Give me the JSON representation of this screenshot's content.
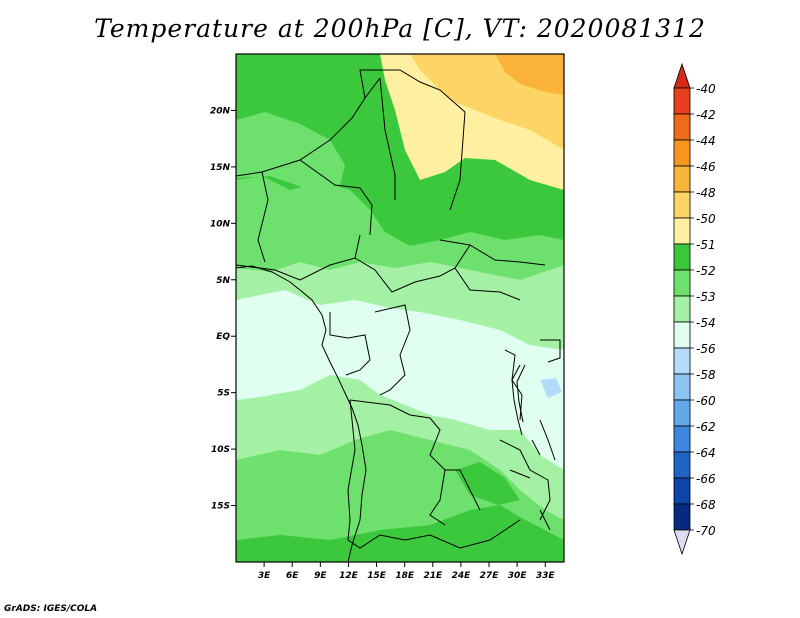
{
  "title": "Temperature at 200hPa [C], VT: 2020081312",
  "credit": "GrADS: IGES/COLA",
  "map": {
    "extent": {
      "lon_min": 0,
      "lon_max": 35,
      "lat_min": -20,
      "lat_max": 25
    },
    "lat_ticks": [
      {
        "lat": 20,
        "label": "20N"
      },
      {
        "lat": 15,
        "label": "15N"
      },
      {
        "lat": 10,
        "label": "10N"
      },
      {
        "lat": 5,
        "label": "5N"
      },
      {
        "lat": 0,
        "label": "EQ"
      },
      {
        "lat": -5,
        "label": "5S"
      },
      {
        "lat": -10,
        "label": "10S"
      },
      {
        "lat": -15,
        "label": "15S"
      }
    ],
    "lon_ticks": [
      {
        "lon": 3,
        "label": "3E"
      },
      {
        "lon": 6,
        "label": "6E"
      },
      {
        "lon": 9,
        "label": "9E"
      },
      {
        "lon": 12,
        "label": "12E"
      },
      {
        "lon": 15,
        "label": "15E"
      },
      {
        "lon": 18,
        "label": "18E"
      },
      {
        "lon": 21,
        "label": "21E"
      },
      {
        "lon": 24,
        "label": "24E"
      },
      {
        "lon": 27,
        "label": "27E"
      },
      {
        "lon": 30,
        "label": "30E"
      },
      {
        "lon": 33,
        "label": "33E"
      }
    ]
  },
  "colorbar": {
    "top_arrow_color": "#d42a1c",
    "bottom_arrow_color": "#dcdcf4",
    "levels": [
      {
        "label": "-40",
        "color": "#e8401e"
      },
      {
        "label": "-42",
        "color": "#f06a1c"
      },
      {
        "label": "-44",
        "color": "#f7961e"
      },
      {
        "label": "-46",
        "color": "#fbb43a"
      },
      {
        "label": "-48",
        "color": "#fdd466"
      },
      {
        "label": "-50",
        "color": "#fef0a0"
      },
      {
        "label": "-51",
        "color": "#3cc83c"
      },
      {
        "label": "-52",
        "color": "#6ee06e"
      },
      {
        "label": "-53",
        "color": "#a4f0a4"
      },
      {
        "label": "-54",
        "color": "#e0fff0"
      },
      {
        "label": "-56",
        "color": "#b4dcf8"
      },
      {
        "label": "-58",
        "color": "#8cc4f4"
      },
      {
        "label": "-60",
        "color": "#64a8ec"
      },
      {
        "label": "-62",
        "color": "#3c88e0"
      },
      {
        "label": "-64",
        "color": "#2064c8"
      },
      {
        "label": "-66",
        "color": "#0c44a8"
      },
      {
        "label": "-68",
        "color": "#062a80"
      },
      {
        "label": "-70",
        "color": "#061860"
      }
    ]
  }
}
